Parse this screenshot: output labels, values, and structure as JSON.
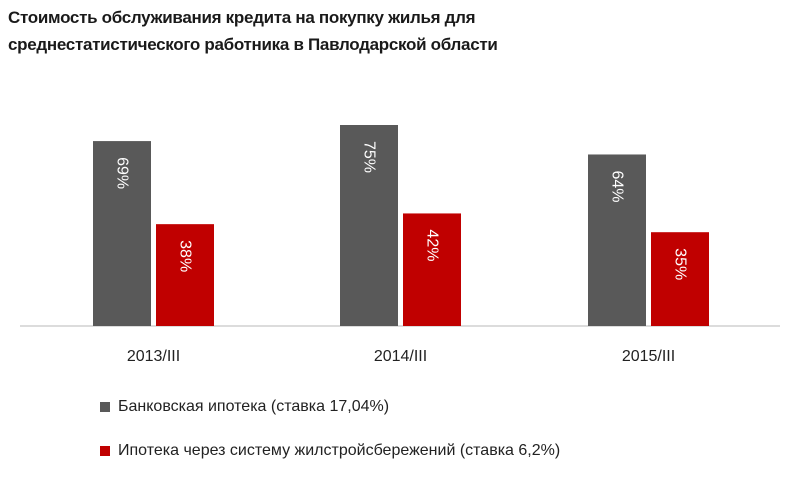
{
  "chart_data": {
    "type": "bar",
    "title": "Стоимость обслуживания кредита на покупку жилья для среднестатистического работника в Павлодарской области",
    "title_lines": [
      "Стоимость обслуживания кредита на покупку жилья для",
      "среднестатистического работника в Павлодарской  области"
    ],
    "categories": [
      "2013/III",
      "2014/III",
      "2015/III"
    ],
    "series": [
      {
        "name": "Банковская ипотека (ставка 17,04%)",
        "values": [
          69,
          75,
          64
        ],
        "labels": [
          "69%",
          "75%",
          "64%"
        ],
        "color": "#595959"
      },
      {
        "name": "Ипотека через систему жилстройсбережений (ставка 6,2%)",
        "values": [
          38,
          42,
          35
        ],
        "labels": [
          "38%",
          "42%",
          "35%"
        ],
        "color": "#c00000"
      }
    ],
    "unit": "%",
    "ylim": [
      0,
      80
    ],
    "grid": false,
    "y_axis_visible": false,
    "legend_position": "bottom-left",
    "data_labels": "inside, rotated vertical"
  }
}
